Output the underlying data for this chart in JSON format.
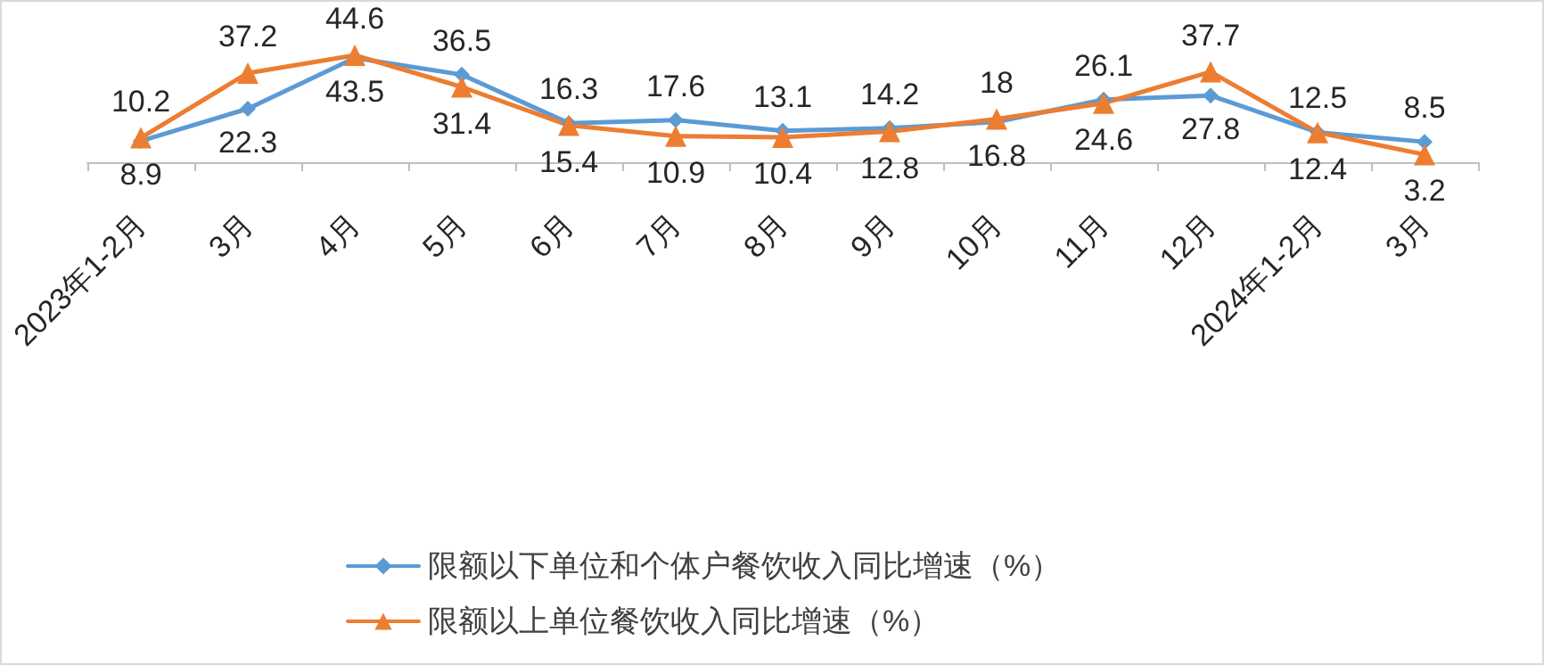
{
  "chart_data": {
    "type": "line",
    "categories": [
      "2023年1-2月",
      "3月",
      "4月",
      "5月",
      "6月",
      "7月",
      "8月",
      "9月",
      "10月",
      "11月",
      "12月",
      "2024年1-2月",
      "3月"
    ],
    "series": [
      {
        "name": "限额以下单位和个体户餐饮收入同比增速（%）",
        "color": "#5b9bd5",
        "marker": "diamond",
        "values": [
          8.9,
          22.3,
          43.5,
          36.5,
          16.3,
          17.6,
          13.1,
          14.2,
          16.8,
          26.1,
          27.8,
          12.5,
          8.5
        ]
      },
      {
        "name": "限额以上单位餐饮收入同比增速（%）",
        "color": "#ed7d31",
        "marker": "triangle",
        "values": [
          10.2,
          37.2,
          44.6,
          31.4,
          15.4,
          10.9,
          10.4,
          12.8,
          18,
          24.6,
          37.7,
          12.4,
          3.2
        ]
      }
    ],
    "data_labels": true,
    "legend": "bottom",
    "grid": false
  }
}
